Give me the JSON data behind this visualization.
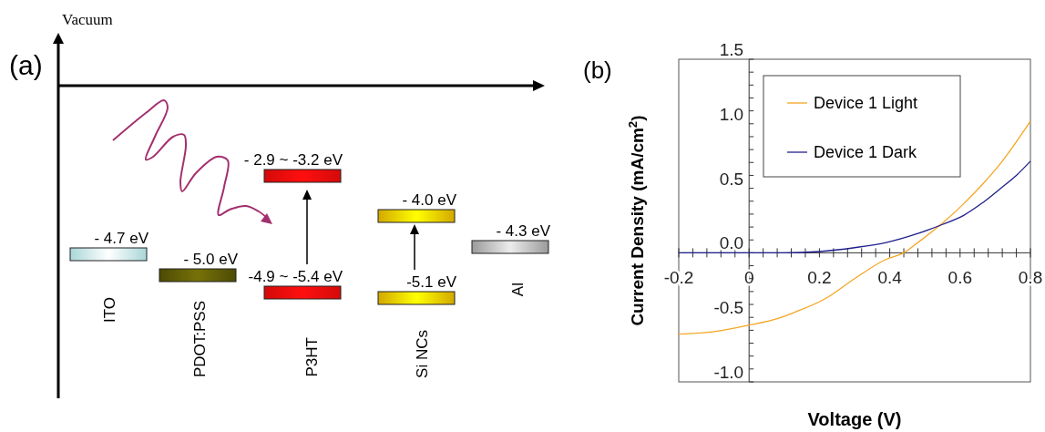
{
  "chart_data": [
    {
      "type": "other",
      "title": "(a)",
      "ylabel": "Vacuum",
      "categories": [
        "ITO",
        "PDOT:PSS",
        "P3HT",
        "Si NCs",
        "Al"
      ],
      "annotations": [
        "- 4.7 eV",
        "- 5.0 eV",
        "- 2.9 ~ -3.2 eV",
        "-4.9 ~ -5.4 eV",
        "- 4.0 eV",
        "-5.1 eV",
        "- 4.3 eV"
      ],
      "colors": [
        "#a9d6d8",
        "#4d4a05",
        "#d40a0a",
        "#d40a0a",
        "#d2a800",
        "#d2a800",
        "#9a9a9a"
      ]
    },
    {
      "type": "line",
      "title": "(b)",
      "xlabel": "Voltage (V)",
      "ylabel": "Current Density (mA/cm$^{2}$)",
      "xlim": [
        -0.2,
        0.8
      ],
      "ylim": [
        -1.0,
        1.5
      ],
      "xticks": [
        {
          "value": -0.2,
          "label": "-0.2"
        },
        {
          "value": -0.16,
          "label": null
        },
        {
          "value": -0.12,
          "label": null
        },
        {
          "value": -0.08,
          "label": null
        },
        {
          "value": -0.04,
          "label": null
        },
        0,
        {
          "value": 0.04,
          "label": null
        },
        {
          "value": 0.08,
          "label": null
        },
        {
          "value": 0.12,
          "label": null
        },
        {
          "value": 0.16,
          "label": null
        },
        {
          "value": 0.2,
          "label": "0.2"
        },
        {
          "value": 0.24,
          "label": null
        },
        {
          "value": 0.28,
          "label": null
        },
        {
          "value": 0.32,
          "label": null
        },
        {
          "value": 0.36,
          "label": null
        },
        {
          "value": 0.4,
          "label": "0.4"
        },
        {
          "value": 0.44,
          "label": null
        },
        {
          "value": 0.48,
          "label": null
        },
        {
          "value": 0.52,
          "label": null
        },
        {
          "value": 0.56,
          "label": null
        },
        {
          "value": 0.6,
          "label": "0.6"
        },
        {
          "value": 0.64,
          "label": null
        },
        {
          "value": 0.68,
          "label": null
        },
        {
          "value": 0.72,
          "label": null
        },
        {
          "value": 0.76,
          "label": null
        },
        {
          "value": 0.8,
          "label": "0.8"
        }
      ],
      "yticks": [
        {
          "value": -1.0,
          "label": "-1.0"
        },
        {
          "value": -0.9,
          "label": null
        },
        {
          "value": -0.8,
          "label": null
        },
        {
          "value": -0.7,
          "label": null
        },
        {
          "value": -0.6,
          "label": null
        },
        {
          "value": -0.5,
          "label": "-0.5"
        },
        {
          "value": -0.4,
          "label": null
        },
        {
          "value": -0.3,
          "label": null
        },
        {
          "value": -0.2,
          "label": null
        },
        {
          "value": -0.1,
          "label": null
        },
        {
          "value": 0,
          "label": "0.0"
        },
        {
          "value": 0.1,
          "label": null
        },
        {
          "value": 0.2,
          "label": null
        },
        {
          "value": 0.3,
          "label": null
        },
        {
          "value": 0.4,
          "label": null
        },
        {
          "value": 0.5,
          "label": "0.5"
        },
        {
          "value": 0.6,
          "label": null
        },
        {
          "value": 0.7,
          "label": null
        },
        {
          "value": 0.8,
          "label": null
        },
        {
          "value": 0.9,
          "label": null
        },
        {
          "value": 1.0,
          "label": "1.0"
        },
        {
          "value": 1.1,
          "label": null
        },
        {
          "value": 1.2,
          "label": null
        },
        {
          "value": 1.3,
          "label": null
        },
        {
          "value": 1.4,
          "label": null
        },
        {
          "value": 1.5,
          "label": "1.5"
        }
      ],
      "legend": "top right",
      "series": [
        {
          "name": "Device 1 Light",
          "color": "#f5a623",
          "x": [
            -0.2,
            -0.1,
            0.0,
            0.08,
            0.13,
            0.22,
            0.3,
            0.39,
            0.44,
            0.48,
            0.55,
            0.61,
            0.66,
            0.72,
            0.8
          ],
          "values": [
            -0.63,
            -0.61,
            -0.56,
            -0.51,
            -0.46,
            -0.35,
            -0.2,
            -0.05,
            0.0,
            0.08,
            0.23,
            0.38,
            0.52,
            0.71,
            1.02
          ]
        },
        {
          "name": "Device 1 Dark",
          "color": "#1f1f8c",
          "x": [
            -0.2,
            0.0,
            0.1,
            0.2,
            0.3,
            0.39,
            0.48,
            0.55,
            0.61,
            0.66,
            0.72,
            0.76,
            0.8
          ],
          "values": [
            0.0,
            0.0,
            0.0,
            0.01,
            0.04,
            0.08,
            0.15,
            0.22,
            0.29,
            0.38,
            0.51,
            0.6,
            0.71
          ]
        }
      ]
    }
  ]
}
